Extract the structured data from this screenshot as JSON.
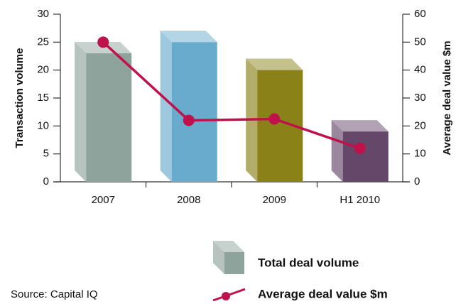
{
  "chart_data": {
    "type": "bar",
    "y_label": "Transaction volume",
    "y2_label": "Average deal value $m",
    "categories": [
      "2007",
      "2008",
      "2009",
      "H1 2010"
    ],
    "series": [
      {
        "name": "Total deal volume",
        "type": "bar",
        "colors": [
          "#8fa39d",
          "#69abcc",
          "#8a8219",
          "#654769"
        ],
        "values": [
          23,
          25,
          20,
          9
        ]
      },
      {
        "name": "Average deal value $m",
        "type": "line",
        "axis": "y2",
        "color": "#c0124a",
        "values": [
          50,
          22,
          22.5,
          12
        ]
      }
    ],
    "ylim": [
      0,
      30
    ],
    "yticks": [
      0,
      5,
      10,
      15,
      20,
      25,
      30
    ],
    "y2lim": [
      0,
      60
    ],
    "y2ticks": [
      0,
      10,
      20,
      30,
      40,
      50,
      60
    ],
    "source": "Source: Capital IQ"
  }
}
